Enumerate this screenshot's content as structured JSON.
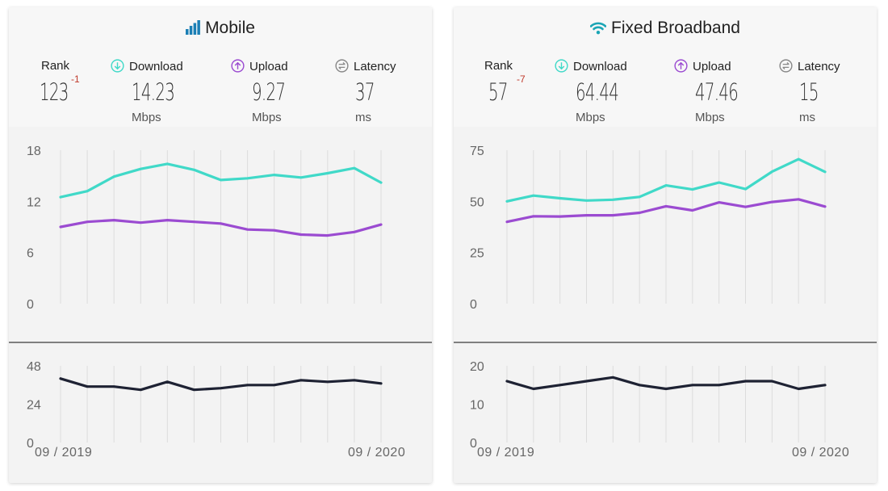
{
  "colors": {
    "download": "#40d9c8",
    "upload": "#9b4bd1",
    "latency": "#1e2233",
    "rank_delta": "#c0392b",
    "mobile_icon": "#1b7fb5",
    "broadband_icon": "#1aa5b5"
  },
  "labels": {
    "rank": "Rank",
    "download": "Download",
    "upload": "Upload",
    "latency": "Latency"
  },
  "panels": [
    {
      "title": "Mobile",
      "title_icon": "signal-bars-icon",
      "rank": "123",
      "rank_delta": "-1",
      "download": "14.23",
      "download_unit": "Mbps",
      "upload": "9.27",
      "upload_unit": "Mbps",
      "latency": "37",
      "latency_unit": "ms",
      "date_start": "09 / 2019",
      "date_end": "09 / 2020"
    },
    {
      "title": "Fixed Broadband",
      "title_icon": "wifi-icon",
      "rank": "57",
      "rank_delta": "-7",
      "download": "64.44",
      "download_unit": "Mbps",
      "upload": "47.46",
      "upload_unit": "Mbps",
      "latency": "15",
      "latency_unit": "ms",
      "date_start": "09 / 2019",
      "date_end": "09 / 2020"
    }
  ],
  "chart_data": [
    {
      "type": "line",
      "panel": "Mobile",
      "x": [
        "09 / 2019",
        "",
        "",
        "",
        "",
        "",
        "",
        "",
        "",
        "",
        "",
        "",
        "09 / 2020"
      ],
      "yticks": [
        0,
        6,
        12,
        18
      ],
      "ylim": [
        0,
        18
      ],
      "series": [
        {
          "values": [
            12.5,
            13.2,
            14.9,
            15.8,
            16.4,
            15.7,
            14.5,
            14.7,
            15.1,
            14.8,
            15.3,
            15.9,
            14.2
          ]
        },
        {
          "values": [
            9.0,
            9.6,
            9.8,
            9.5,
            9.8,
            9.6,
            9.4,
            8.7,
            8.6,
            8.1,
            8.0,
            8.4,
            9.27
          ]
        }
      ]
    },
    {
      "type": "line",
      "panel": "Mobile",
      "x": [
        "09 / 2019",
        "",
        "",
        "",
        "",
        "",
        "",
        "",
        "",
        "",
        "",
        "",
        "09 / 2020"
      ],
      "yticks": [
        0,
        24,
        48
      ],
      "ylim": [
        0,
        48
      ],
      "series": [
        {
          "values": [
            40,
            35,
            35,
            33,
            38,
            33,
            34,
            36,
            36,
            39,
            38,
            39,
            37
          ]
        }
      ]
    },
    {
      "type": "line",
      "panel": "Fixed Broadband",
      "x": [
        "09 / 2019",
        "",
        "",
        "",
        "",
        "",
        "",
        "",
        "",
        "",
        "",
        "",
        "09 / 2020"
      ],
      "yticks": [
        0,
        25,
        50,
        75
      ],
      "ylim": [
        0,
        75
      ],
      "series": [
        {
          "values": [
            50,
            52.8,
            51.5,
            50.4,
            50.8,
            52.2,
            57.8,
            55.8,
            59.2,
            56.0,
            64.5,
            70.6,
            64.44
          ]
        },
        {
          "values": [
            40,
            42.7,
            42.6,
            43.2,
            43.2,
            44.4,
            47.6,
            45.6,
            49.5,
            47.3,
            49.7,
            51.0,
            47.46
          ]
        }
      ]
    },
    {
      "type": "line",
      "panel": "Fixed Broadband",
      "x": [
        "09 / 2019",
        "",
        "",
        "",
        "",
        "",
        "",
        "",
        "",
        "",
        "",
        "",
        "09 / 2020"
      ],
      "yticks": [
        0,
        10,
        20
      ],
      "ylim": [
        0,
        20
      ],
      "series": [
        {
          "values": [
            16,
            14,
            15,
            16,
            17,
            15,
            14,
            15,
            15,
            16,
            16,
            14,
            15
          ]
        }
      ]
    }
  ]
}
